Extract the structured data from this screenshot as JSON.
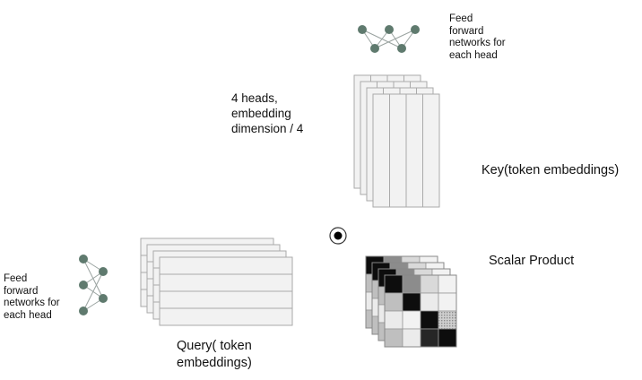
{
  "labels": {
    "ffn_top": "Feed\nforward\nnetworks for\neach head",
    "ffn_left": "Feed\nforward\nnetworks for\neach head",
    "heads": "4 heads,\nembedding\ndimension / 4",
    "key": "Key(token embeddings)",
    "scalar": "Scalar Product",
    "query": "Query( token\nembeddings)"
  },
  "colors": {
    "node": "#5f7a6e",
    "edge": "#9aa3a0",
    "matrix_fill": "#f2f2f2",
    "matrix_stroke": "#aaaaaa"
  },
  "icons": {
    "product": "dot-product-icon"
  },
  "attention_matrix": [
    [
      0.05,
      0.55,
      0.85,
      0.95
    ],
    [
      0.75,
      0.05,
      0.92,
      0.95
    ],
    [
      0.92,
      0.95,
      0.05,
      0.55
    ],
    [
      0.75,
      0.92,
      0.15,
      0.05
    ]
  ]
}
